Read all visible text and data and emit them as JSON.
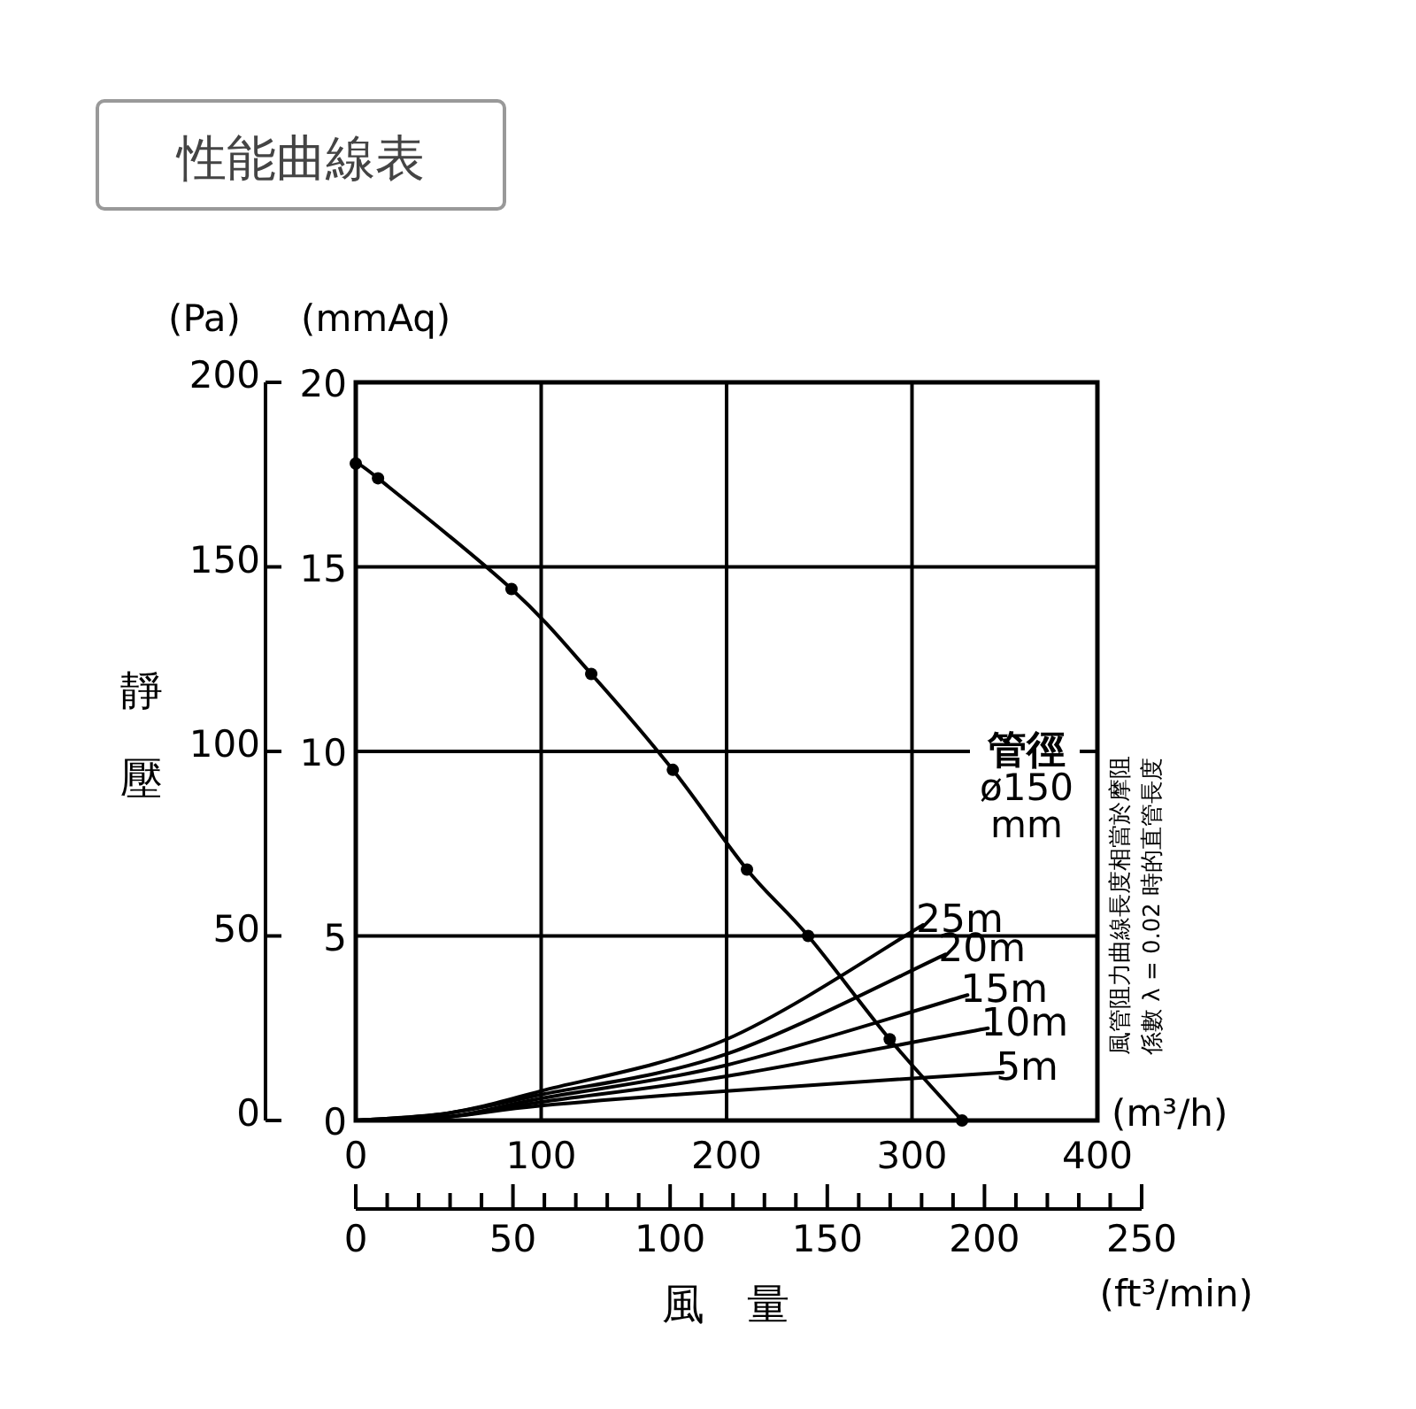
{
  "chart_data": {
    "type": "line",
    "title": "性能曲線表",
    "xlabel": "風量",
    "ylabel": "靜壓",
    "y2label": "(mmAq)",
    "x2label": "(ft³/min)",
    "annotations": [
      "(Pa)",
      "(m³/h)",
      "管徑\nø150\nmm",
      "風管阻力曲線長度相當於摩阻",
      "係數 λ = 0.02 時的直管長度"
    ],
    "xlim": [
      0,
      400
    ],
    "xticks": [
      0,
      100,
      200,
      300,
      400
    ],
    "ylim": [
      0,
      200
    ],
    "yticks": [
      0,
      50,
      100,
      150,
      200
    ],
    "y2lim": [
      0,
      20
    ],
    "y2ticks": [
      0,
      5,
      10,
      15,
      20
    ],
    "x2lim": [
      0,
      250
    ],
    "x2ticks": [
      0,
      50,
      100,
      150,
      200,
      250
    ],
    "grid": true,
    "series": [
      {
        "color": "#000000",
        "marker": "circle",
        "x": [
          0,
          12,
          84,
          127,
          171,
          211,
          244,
          288,
          327
        ],
        "values": [
          178,
          174,
          144,
          121,
          95,
          68,
          50,
          22,
          0
        ]
      },
      {
        "name": "25m",
        "color": "#000000",
        "marker": "none",
        "x": [
          0,
          50,
          100,
          200,
          306
        ],
        "values": [
          0,
          2,
          8,
          22,
          53
        ]
      },
      {
        "name": "20m",
        "color": "#000000",
        "marker": "none",
        "x": [
          0,
          50,
          100,
          200,
          318
        ],
        "values": [
          0,
          2,
          7,
          18,
          45
        ]
      },
      {
        "name": "15m",
        "color": "#000000",
        "marker": "none",
        "x": [
          0,
          50,
          100,
          200,
          330
        ],
        "values": [
          0,
          1,
          6,
          15,
          34
        ]
      },
      {
        "name": "10m",
        "color": "#000000",
        "marker": "none",
        "x": [
          0,
          50,
          100,
          200,
          341
        ],
        "values": [
          0,
          1,
          5,
          12,
          25
        ]
      },
      {
        "name": "5m",
        "color": "#000000",
        "marker": "none",
        "x": [
          0,
          50,
          100,
          200,
          349
        ],
        "values": [
          0,
          1,
          4,
          8,
          13
        ]
      }
    ]
  }
}
